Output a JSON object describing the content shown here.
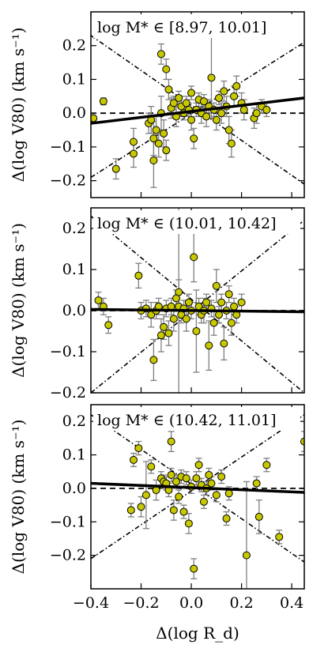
{
  "figure": {
    "xlabel": "Δ(log R_d)"
  },
  "chart_data": [
    {
      "type": "scatter",
      "title": "log M* ∈ [8.97, 10.01]",
      "xlabel": "Δ(log R_d)",
      "ylabel": "Δ(log V80) (km s⁻¹)",
      "xlim": [
        -0.4,
        0.45
      ],
      "ylim": [
        -0.25,
        0.3
      ],
      "xticks": [
        "−0.4",
        "−0.2",
        "0.0",
        "0.2",
        "0.4"
      ],
      "yticks": [
        "−0.2",
        "−0.1",
        "0.0",
        "0.1",
        "0.2"
      ],
      "yticks_values": [
        -0.2,
        -0.1,
        0.0,
        0.1,
        0.2
      ],
      "xticks_values": [
        -0.4,
        -0.2,
        0.0,
        0.2,
        0.4
      ],
      "fit_line": {
        "x": [
          -0.4,
          0.45
        ],
        "y": [
          -0.03,
          0.045
        ]
      },
      "dashdot_lines": [
        {
          "x": [
            -0.4,
            0.45
          ],
          "y": [
            0.23,
            -0.21
          ]
        },
        {
          "x": [
            -0.4,
            0.45
          ],
          "y": [
            -0.19,
            0.21
          ]
        }
      ],
      "dashed_zero": true,
      "colors": {
        "marker": "#c8c800",
        "errorbar": "#808080"
      },
      "points": [
        {
          "x": -0.39,
          "y": -0.015,
          "err": 0.015
        },
        {
          "x": -0.35,
          "y": 0.035,
          "err": 0.01
        },
        {
          "x": -0.3,
          "y": -0.165,
          "err": 0.03
        },
        {
          "x": -0.23,
          "y": -0.12,
          "err": 0.04
        },
        {
          "x": -0.23,
          "y": -0.085,
          "err": 0.04
        },
        {
          "x": -0.17,
          "y": -0.03,
          "err": 0.03
        },
        {
          "x": -0.16,
          "y": -0.02,
          "err": 0.04
        },
        {
          "x": -0.15,
          "y": -0.075,
          "err": 0.05
        },
        {
          "x": -0.15,
          "y": -0.14,
          "err": 0.08
        },
        {
          "x": -0.14,
          "y": -0.05,
          "err": 0.04
        },
        {
          "x": -0.13,
          "y": -0.09,
          "err": 0.04
        },
        {
          "x": -0.12,
          "y": 0.0,
          "err": 0.05
        },
        {
          "x": -0.12,
          "y": 0.175,
          "err": 0.03
        },
        {
          "x": -0.11,
          "y": -0.06,
          "err": 0.04
        },
        {
          "x": -0.1,
          "y": -0.11,
          "err": 0.03
        },
        {
          "x": -0.1,
          "y": 0.13,
          "err": 0.03
        },
        {
          "x": -0.09,
          "y": 0.07,
          "err": 0.03
        },
        {
          "x": -0.08,
          "y": 0.015,
          "err": 0.03
        },
        {
          "x": -0.07,
          "y": 0.03,
          "err": 0.02
        },
        {
          "x": -0.06,
          "y": -0.01,
          "err": 0.03
        },
        {
          "x": -0.05,
          "y": 0.045,
          "err": 0.02
        },
        {
          "x": -0.04,
          "y": 0.02,
          "err": 0.03
        },
        {
          "x": -0.03,
          "y": 0.0,
          "err": 0.02
        },
        {
          "x": -0.02,
          "y": 0.03,
          "err": 0.02
        },
        {
          "x": -0.01,
          "y": 0.01,
          "err": 0.02
        },
        {
          "x": 0.0,
          "y": -0.02,
          "err": 0.03
        },
        {
          "x": 0.0,
          "y": 0.06,
          "err": 0.02
        },
        {
          "x": 0.01,
          "y": -0.075,
          "err": 0.03
        },
        {
          "x": 0.02,
          "y": 0.01,
          "err": 0.02
        },
        {
          "x": 0.03,
          "y": 0.04,
          "err": 0.02
        },
        {
          "x": 0.04,
          "y": 0.0,
          "err": 0.03
        },
        {
          "x": 0.05,
          "y": 0.035,
          "err": 0.02
        },
        {
          "x": 0.06,
          "y": -0.01,
          "err": 0.03
        },
        {
          "x": 0.07,
          "y": 0.02,
          "err": 0.02
        },
        {
          "x": 0.08,
          "y": 0.105,
          "err": 0.12
        },
        {
          "x": 0.09,
          "y": 0.01,
          "err": 0.02
        },
        {
          "x": 0.1,
          "y": -0.02,
          "err": 0.03
        },
        {
          "x": 0.11,
          "y": 0.045,
          "err": 0.02
        },
        {
          "x": 0.12,
          "y": 0.0,
          "err": 0.03
        },
        {
          "x": 0.13,
          "y": 0.065,
          "err": 0.03
        },
        {
          "x": 0.14,
          "y": 0.02,
          "err": 0.03
        },
        {
          "x": 0.15,
          "y": -0.05,
          "err": 0.04
        },
        {
          "x": 0.16,
          "y": -0.09,
          "err": 0.04
        },
        {
          "x": 0.17,
          "y": 0.05,
          "err": 0.03
        },
        {
          "x": 0.18,
          "y": 0.08,
          "err": 0.03
        },
        {
          "x": 0.2,
          "y": 0.03,
          "err": 0.03
        },
        {
          "x": 0.21,
          "y": 0.01,
          "err": 0.03
        },
        {
          "x": 0.25,
          "y": -0.015,
          "err": 0.03
        },
        {
          "x": 0.26,
          "y": 0.0,
          "err": 0.03
        },
        {
          "x": 0.28,
          "y": 0.02,
          "err": 0.02
        },
        {
          "x": 0.3,
          "y": 0.01,
          "err": 0.02
        }
      ]
    },
    {
      "type": "scatter",
      "title": "log M* ∈ (10.01, 10.42]",
      "xlabel": "Δ(log R_d)",
      "ylabel": "Δ(log V80) (km s⁻¹)",
      "xlim": [
        -0.4,
        0.45
      ],
      "ylim": [
        -0.2,
        0.25
      ],
      "xticks": [
        "−0.4",
        "−0.2",
        "0.0",
        "0.2",
        "0.4"
      ],
      "yticks": [
        "−0.2",
        "−0.1",
        "0.0",
        "0.1",
        "0.2"
      ],
      "yticks_values": [
        -0.2,
        -0.1,
        0.0,
        0.1,
        0.2
      ],
      "xticks_values": [
        -0.4,
        -0.2,
        0.0,
        0.2,
        0.4
      ],
      "fit_line": {
        "x": [
          -0.4,
          0.45
        ],
        "y": [
          0.003,
          -0.003
        ]
      },
      "dashdot_lines": [
        {
          "x": [
            -0.4,
            0.45
          ],
          "y": [
            0.23,
            -0.2
          ]
        },
        {
          "x": [
            -0.4,
            0.45
          ],
          "y": [
            -0.2,
            0.22
          ]
        }
      ],
      "dashed_zero": true,
      "colors": {
        "marker": "#c8c800",
        "errorbar": "#808080"
      },
      "points": [
        {
          "x": -0.37,
          "y": 0.025,
          "err": 0.02
        },
        {
          "x": -0.35,
          "y": 0.01,
          "err": 0.02
        },
        {
          "x": -0.33,
          "y": -0.035,
          "err": 0.02
        },
        {
          "x": -0.21,
          "y": 0.085,
          "err": 0.03
        },
        {
          "x": -0.2,
          "y": 0.0,
          "err": 0.02
        },
        {
          "x": -0.18,
          "y": 0.005,
          "err": 0.02
        },
        {
          "x": -0.16,
          "y": -0.01,
          "err": 0.03
        },
        {
          "x": -0.15,
          "y": -0.12,
          "err": 0.05
        },
        {
          "x": -0.14,
          "y": 0.0,
          "err": 0.02
        },
        {
          "x": -0.13,
          "y": 0.01,
          "err": 0.02
        },
        {
          "x": -0.12,
          "y": -0.06,
          "err": 0.04
        },
        {
          "x": -0.11,
          "y": -0.04,
          "err": 0.03
        },
        {
          "x": -0.1,
          "y": 0.005,
          "err": 0.02
        },
        {
          "x": -0.09,
          "y": -0.055,
          "err": 0.03
        },
        {
          "x": -0.08,
          "y": 0.01,
          "err": 0.02
        },
        {
          "x": -0.07,
          "y": -0.02,
          "err": 0.03
        },
        {
          "x": -0.06,
          "y": 0.03,
          "err": 0.02
        },
        {
          "x": -0.05,
          "y": 0.045,
          "err": 0.03
        },
        {
          "x": -0.05,
          "y": 0.01,
          "err": 0.25
        },
        {
          "x": -0.04,
          "y": -0.01,
          "err": 0.02
        },
        {
          "x": -0.03,
          "y": 0.005,
          "err": 0.02
        },
        {
          "x": -0.02,
          "y": -0.02,
          "err": 0.03
        },
        {
          "x": -0.01,
          "y": 0.02,
          "err": 0.02
        },
        {
          "x": 0.0,
          "y": 0.0,
          "err": 0.02
        },
        {
          "x": 0.01,
          "y": 0.13,
          "err": 0.06
        },
        {
          "x": 0.02,
          "y": -0.05,
          "err": 0.1
        },
        {
          "x": 0.03,
          "y": 0.01,
          "err": 0.02
        },
        {
          "x": 0.04,
          "y": -0.01,
          "err": 0.02
        },
        {
          "x": 0.05,
          "y": 0.0,
          "err": 0.03
        },
        {
          "x": 0.06,
          "y": 0.02,
          "err": 0.02
        },
        {
          "x": 0.07,
          "y": -0.085,
          "err": 0.06
        },
        {
          "x": 0.08,
          "y": 0.005,
          "err": 0.02
        },
        {
          "x": 0.09,
          "y": -0.03,
          "err": 0.03
        },
        {
          "x": 0.1,
          "y": 0.06,
          "err": 0.04
        },
        {
          "x": 0.11,
          "y": -0.01,
          "err": 0.02
        },
        {
          "x": 0.12,
          "y": 0.02,
          "err": 0.02
        },
        {
          "x": 0.13,
          "y": -0.08,
          "err": 0.04
        },
        {
          "x": 0.14,
          "y": 0.0,
          "err": 0.02
        },
        {
          "x": 0.15,
          "y": 0.04,
          "err": 0.02
        },
        {
          "x": 0.16,
          "y": -0.03,
          "err": 0.03
        },
        {
          "x": 0.17,
          "y": 0.01,
          "err": 0.02
        },
        {
          "x": 0.18,
          "y": -0.01,
          "err": 0.02
        },
        {
          "x": 0.2,
          "y": 0.02,
          "err": 0.02
        }
      ]
    },
    {
      "type": "scatter",
      "title": "log M* ∈ (10.42, 11.01]",
      "xlabel": "Δ(log R_d)",
      "ylabel": "Δ(log V80) (km s⁻¹)",
      "xlim": [
        -0.4,
        0.45
      ],
      "ylim": [
        -0.3,
        0.25
      ],
      "xticks": [
        "−0.4",
        "−0.2",
        "0.0",
        "0.2",
        "0.4"
      ],
      "yticks": [
        "−0.2",
        "−0.1",
        "0.0",
        "0.1",
        "0.2"
      ],
      "yticks_values": [
        -0.2,
        -0.1,
        0.0,
        0.1,
        0.2
      ],
      "xticks_values": [
        -0.4,
        -0.2,
        0.0,
        0.2,
        0.4
      ],
      "fit_line": {
        "x": [
          -0.4,
          0.45
        ],
        "y": [
          0.015,
          -0.012
        ]
      },
      "dashdot_lines": [
        {
          "x": [
            -0.4,
            0.45
          ],
          "y": [
            0.22,
            -0.22
          ]
        },
        {
          "x": [
            -0.4,
            0.45
          ],
          "y": [
            -0.21,
            0.22
          ]
        }
      ],
      "dashed_zero": true,
      "colors": {
        "marker": "#c8c800",
        "errorbar": "#808080"
      },
      "points": [
        {
          "x": -0.24,
          "y": -0.065,
          "err": 0.02
        },
        {
          "x": -0.23,
          "y": 0.085,
          "err": 0.02
        },
        {
          "x": -0.21,
          "y": 0.12,
          "err": 0.02
        },
        {
          "x": -0.2,
          "y": -0.055,
          "err": 0.03
        },
        {
          "x": -0.18,
          "y": -0.02,
          "err": 0.1
        },
        {
          "x": -0.16,
          "y": 0.065,
          "err": 0.02
        },
        {
          "x": -0.14,
          "y": -0.005,
          "err": 0.03
        },
        {
          "x": -0.12,
          "y": 0.03,
          "err": 0.02
        },
        {
          "x": -0.11,
          "y": 0.02,
          "err": 0.02
        },
        {
          "x": -0.1,
          "y": 0.015,
          "err": 0.02
        },
        {
          "x": -0.09,
          "y": -0.005,
          "err": 0.02
        },
        {
          "x": -0.08,
          "y": 0.14,
          "err": 0.03
        },
        {
          "x": -0.08,
          "y": 0.04,
          "err": 0.02
        },
        {
          "x": -0.07,
          "y": -0.065,
          "err": 0.03
        },
        {
          "x": -0.06,
          "y": 0.02,
          "err": 0.02
        },
        {
          "x": -0.05,
          "y": -0.025,
          "err": 0.02
        },
        {
          "x": -0.04,
          "y": 0.035,
          "err": 0.02
        },
        {
          "x": -0.03,
          "y": -0.07,
          "err": 0.02
        },
        {
          "x": -0.02,
          "y": 0.03,
          "err": 0.02
        },
        {
          "x": -0.01,
          "y": -0.105,
          "err": 0.03
        },
        {
          "x": 0.0,
          "y": 0.005,
          "err": 0.02
        },
        {
          "x": 0.01,
          "y": -0.24,
          "err": 0.03
        },
        {
          "x": 0.02,
          "y": 0.03,
          "err": 0.02
        },
        {
          "x": 0.03,
          "y": 0.07,
          "err": 0.02
        },
        {
          "x": 0.04,
          "y": 0.01,
          "err": 0.02
        },
        {
          "x": 0.05,
          "y": -0.04,
          "err": 0.02
        },
        {
          "x": 0.06,
          "y": 0.0,
          "err": 0.02
        },
        {
          "x": 0.07,
          "y": 0.04,
          "err": 0.02
        },
        {
          "x": 0.08,
          "y": 0.015,
          "err": 0.02
        },
        {
          "x": 0.1,
          "y": -0.02,
          "err": 0.02
        },
        {
          "x": 0.12,
          "y": 0.035,
          "err": 0.02
        },
        {
          "x": 0.14,
          "y": -0.09,
          "err": 0.02
        },
        {
          "x": 0.15,
          "y": -0.015,
          "err": 0.02
        },
        {
          "x": 0.22,
          "y": -0.2,
          "err": 0.22
        },
        {
          "x": 0.26,
          "y": 0.015,
          "err": 0.02
        },
        {
          "x": 0.27,
          "y": -0.085,
          "err": 0.05
        },
        {
          "x": 0.3,
          "y": 0.07,
          "err": 0.02
        },
        {
          "x": 0.35,
          "y": -0.145,
          "err": 0.02
        },
        {
          "x": 0.45,
          "y": 0.14,
          "err": 0.03
        }
      ]
    }
  ]
}
